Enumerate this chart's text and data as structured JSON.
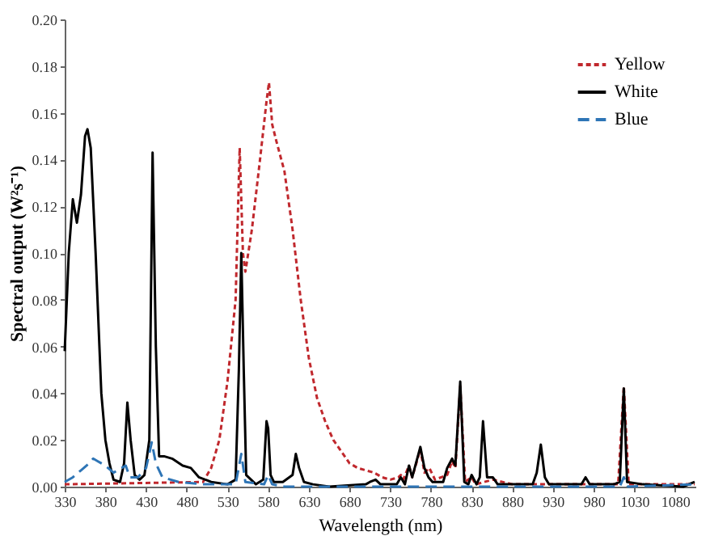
{
  "chart_data": {
    "type": "line",
    "xlabel": "Wavelength (nm)",
    "ylabel": "Spectral output (W²s⁻¹)",
    "xlim": [
      330,
      1105
    ],
    "xticks": [
      330,
      380,
      430,
      480,
      530,
      580,
      630,
      680,
      730,
      780,
      830,
      880,
      930,
      980,
      1030,
      1080
    ],
    "ylim": [
      0,
      0.2
    ],
    "yticks": [
      {
        "value": 0,
        "label": "0.00"
      },
      0.02,
      0.04,
      0.06,
      0.08,
      {
        "value": 0.1,
        "label": "0.10"
      },
      0.12,
      0.14,
      0.16,
      0.18,
      {
        "value": 0.2,
        "label": "0.20"
      }
    ],
    "grid": false,
    "legend": "top right",
    "marker": "none",
    "series": [
      {
        "name": "Yellow",
        "color": "#c0282d",
        "line_style": "dotted",
        "x": [
          330,
          500,
          510,
          520,
          530,
          540,
          545,
          549,
          552,
          560,
          570,
          578,
          581,
          585,
          590,
          600,
          610,
          620,
          630,
          640,
          650,
          660,
          670,
          680,
          690,
          700,
          710,
          720,
          730,
          740,
          743,
          746,
          753,
          757,
          767,
          772,
          778,
          785,
          800,
          806,
          810,
          816,
          822,
          830,
          835,
          856,
          880,
          1010,
          1017,
          1023,
          1104
        ],
        "values": [
          0.001,
          0.002,
          0.008,
          0.02,
          0.045,
          0.08,
          0.145,
          0.1,
          0.092,
          0.11,
          0.14,
          0.165,
          0.173,
          0.155,
          0.148,
          0.135,
          0.11,
          0.08,
          0.055,
          0.038,
          0.028,
          0.02,
          0.015,
          0.01,
          0.008,
          0.007,
          0.006,
          0.004,
          0.003,
          0.004,
          0.005,
          0.003,
          0.009,
          0.004,
          0.016,
          0.006,
          0.008,
          0.003,
          0.005,
          0.011,
          0.008,
          0.043,
          0.002,
          0.004,
          0.001,
          0.003,
          0.001,
          0.001,
          0.043,
          0.001,
          0.001
        ]
      },
      {
        "name": "White",
        "color": "#000000",
        "line_style": "solid",
        "x": [
          330,
          335,
          340,
          345,
          350,
          355,
          358,
          362,
          368,
          375,
          380,
          385,
          390,
          398,
          403,
          407,
          411,
          416,
          422,
          428,
          434,
          438,
          442,
          446,
          452,
          462,
          475,
          485,
          495,
          510,
          530,
          540,
          544,
          547,
          550,
          553,
          565,
          574,
          578,
          580,
          583,
          587,
          598,
          610,
          614,
          618,
          624,
          635,
          655,
          700,
          705,
          712,
          718,
          738,
          743,
          748,
          753,
          757,
          767,
          772,
          777,
          782,
          795,
          800,
          806,
          810,
          816,
          821,
          826,
          830,
          836,
          840,
          844,
          849,
          856,
          862,
          905,
          910,
          915,
          920,
          925,
          935,
          965,
          970,
          975,
          1005,
          1012,
          1017,
          1021,
          1040,
          1090,
          1104
        ],
        "values": [
          0.058,
          0.1,
          0.123,
          0.113,
          0.125,
          0.15,
          0.153,
          0.145,
          0.1,
          0.04,
          0.02,
          0.01,
          0.003,
          0.002,
          0.01,
          0.036,
          0.02,
          0.005,
          0.003,
          0.005,
          0.02,
          0.143,
          0.06,
          0.013,
          0.013,
          0.012,
          0.009,
          0.008,
          0.004,
          0.002,
          0.001,
          0.003,
          0.05,
          0.1,
          0.05,
          0.005,
          0.001,
          0.003,
          0.028,
          0.025,
          0.005,
          0.002,
          0.002,
          0.005,
          0.014,
          0.008,
          0.002,
          0.001,
          0,
          0.001,
          0.002,
          0.003,
          0.001,
          0.001,
          0.004,
          0.001,
          0.009,
          0.004,
          0.017,
          0.008,
          0.004,
          0.002,
          0.002,
          0.008,
          0.012,
          0.009,
          0.045,
          0.002,
          0.001,
          0.005,
          0.001,
          0.004,
          0.028,
          0.004,
          0.004,
          0.001,
          0.001,
          0.006,
          0.018,
          0.004,
          0.001,
          0.001,
          0.001,
          0.004,
          0.001,
          0.001,
          0.002,
          0.042,
          0.002,
          0.001,
          0,
          0.002
        ]
      },
      {
        "name": "Blue",
        "color": "#2e75b6",
        "line_style": "dashed",
        "x": [
          330,
          340,
          350,
          360,
          365,
          370,
          380,
          390,
          400,
          405,
          410,
          420,
          430,
          437,
          442,
          450,
          470,
          500,
          540,
          547,
          552,
          575,
          580,
          585,
          600,
          1012,
          1017,
          1022,
          1104
        ],
        "values": [
          0.002,
          0.004,
          0.007,
          0.01,
          0.012,
          0.011,
          0.009,
          0.006,
          0.008,
          0.009,
          0.004,
          0.004,
          0.008,
          0.019,
          0.01,
          0.004,
          0.002,
          0.001,
          0.001,
          0.014,
          0.002,
          0.001,
          0.005,
          0.001,
          0,
          0,
          0.004,
          0,
          0.001
        ]
      }
    ]
  }
}
